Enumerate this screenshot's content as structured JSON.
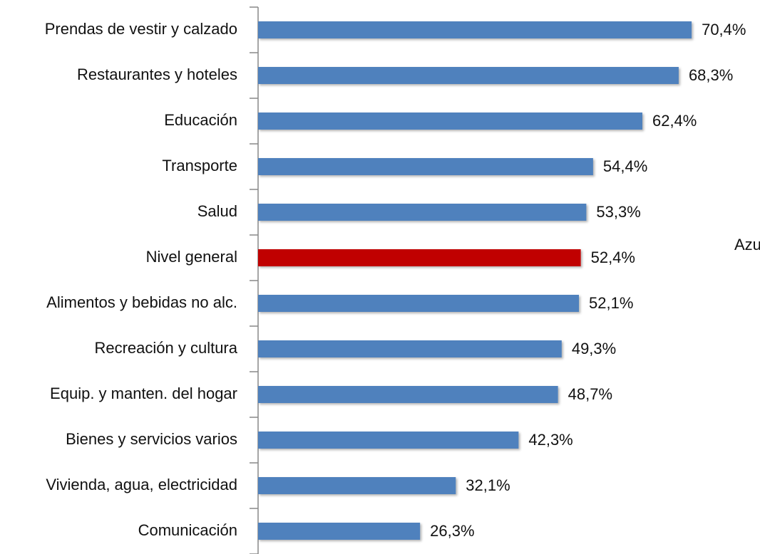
{
  "chart_data": {
    "type": "barh",
    "categories": [
      "Prendas de vestir y calzado",
      "Restaurantes y hoteles",
      "Educación",
      "Transporte",
      "Salud",
      "Nivel general",
      "Alimentos y bebidas no alc.",
      "Recreación y cultura",
      "Equip. y manten. del hogar",
      "Bienes y servicios varios",
      "Vivienda, agua, electricidad",
      "Comunicación"
    ],
    "values": [
      70.4,
      68.3,
      62.4,
      54.4,
      53.3,
      52.4,
      52.1,
      49.3,
      48.7,
      42.3,
      32.1,
      26.3
    ],
    "value_labels": [
      "70,4%",
      "68,3%",
      "62,4%",
      "54,4%",
      "53,3%",
      "52,4%",
      "52,1%",
      "49,3%",
      "48,7%",
      "42,3%",
      "32,1%",
      "26,3%"
    ],
    "colors": [
      "#4f81bd",
      "#4f81bd",
      "#4f81bd",
      "#4f81bd",
      "#4f81bd",
      "#c00000",
      "#4f81bd",
      "#4f81bd",
      "#4f81bd",
      "#4f81bd",
      "#4f81bd",
      "#4f81bd"
    ],
    "xlim": [
      0,
      80
    ],
    "annotations": [
      "Azu"
    ]
  }
}
